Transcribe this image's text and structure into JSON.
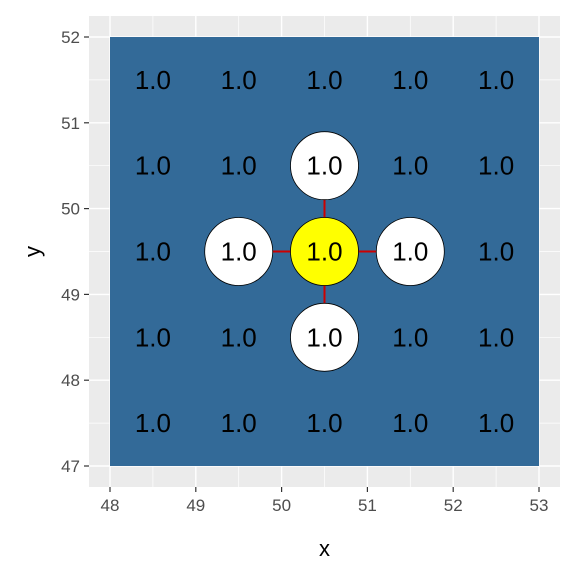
{
  "chart_data": {
    "type": "heatmap",
    "title": "",
    "xlabel": "x",
    "ylabel": "y",
    "xlim": [
      48,
      53
    ],
    "ylim": [
      47,
      52
    ],
    "x_ticks": [
      48,
      49,
      50,
      51,
      52,
      53
    ],
    "y_ticks": [
      47,
      48,
      49,
      50,
      51,
      52
    ],
    "grid": true,
    "legend": "none",
    "tile_color": "#336a98",
    "panel_background": "#ebebeb",
    "gridline_color": "#ffffff",
    "tiles": [
      {
        "x": 48.5,
        "y": 51.5,
        "label": "1.0"
      },
      {
        "x": 49.5,
        "y": 51.5,
        "label": "1.0"
      },
      {
        "x": 50.5,
        "y": 51.5,
        "label": "1.0"
      },
      {
        "x": 51.5,
        "y": 51.5,
        "label": "1.0"
      },
      {
        "x": 52.5,
        "y": 51.5,
        "label": "1.0"
      },
      {
        "x": 48.5,
        "y": 50.5,
        "label": "1.0"
      },
      {
        "x": 49.5,
        "y": 50.5,
        "label": "1.0"
      },
      {
        "x": 50.5,
        "y": 50.5,
        "label": "1.0"
      },
      {
        "x": 51.5,
        "y": 50.5,
        "label": "1.0"
      },
      {
        "x": 52.5,
        "y": 50.5,
        "label": "1.0"
      },
      {
        "x": 48.5,
        "y": 49.5,
        "label": "1.0"
      },
      {
        "x": 49.5,
        "y": 49.5,
        "label": "1.0"
      },
      {
        "x": 50.5,
        "y": 49.5,
        "label": "1.0"
      },
      {
        "x": 51.5,
        "y": 49.5,
        "label": "1.0"
      },
      {
        "x": 52.5,
        "y": 49.5,
        "label": "1.0"
      },
      {
        "x": 48.5,
        "y": 48.5,
        "label": "1.0"
      },
      {
        "x": 49.5,
        "y": 48.5,
        "label": "1.0"
      },
      {
        "x": 50.5,
        "y": 48.5,
        "label": "1.0"
      },
      {
        "x": 51.5,
        "y": 48.5,
        "label": "1.0"
      },
      {
        "x": 52.5,
        "y": 48.5,
        "label": "1.0"
      },
      {
        "x": 48.5,
        "y": 47.5,
        "label": "1.0"
      },
      {
        "x": 49.5,
        "y": 47.5,
        "label": "1.0"
      },
      {
        "x": 50.5,
        "y": 47.5,
        "label": "1.0"
      },
      {
        "x": 51.5,
        "y": 47.5,
        "label": "1.0"
      },
      {
        "x": 52.5,
        "y": 47.5,
        "label": "1.0"
      }
    ],
    "nodes": [
      {
        "x": 50.5,
        "y": 49.5,
        "fill": "#ffff00",
        "role": "center"
      },
      {
        "x": 49.5,
        "y": 49.5,
        "fill": "#ffffff",
        "role": "neighbor"
      },
      {
        "x": 51.5,
        "y": 49.5,
        "fill": "#ffffff",
        "role": "neighbor"
      },
      {
        "x": 50.5,
        "y": 50.5,
        "fill": "#ffffff",
        "role": "neighbor"
      },
      {
        "x": 50.5,
        "y": 48.5,
        "fill": "#ffffff",
        "role": "neighbor"
      }
    ],
    "edges": [
      {
        "from": [
          50.5,
          49.5
        ],
        "to": [
          49.5,
          49.5
        ]
      },
      {
        "from": [
          50.5,
          49.5
        ],
        "to": [
          51.5,
          49.5
        ]
      },
      {
        "from": [
          50.5,
          49.5
        ],
        "to": [
          50.5,
          50.5
        ]
      },
      {
        "from": [
          50.5,
          49.5
        ],
        "to": [
          50.5,
          48.5
        ]
      }
    ],
    "edge_color": "#cc0000"
  }
}
